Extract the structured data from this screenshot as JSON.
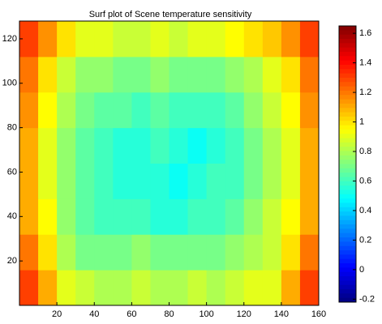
{
  "chart_data": {
    "type": "heatmap",
    "title": "Surf plot of Scene temperature sensitivity",
    "xbins": [
      0,
      10,
      20,
      30,
      40,
      50,
      60,
      70,
      80,
      90,
      100,
      110,
      120,
      130,
      140,
      150,
      160
    ],
    "ybins": [
      0,
      16,
      32,
      48,
      64,
      80,
      96,
      112,
      128
    ],
    "z": [
      [
        1.3,
        1.1,
        0.9,
        0.85,
        0.8,
        0.8,
        0.85,
        0.8,
        0.8,
        0.85,
        0.8,
        0.85,
        0.9,
        0.9,
        1.1,
        1.3
      ],
      [
        1.2,
        1.0,
        0.8,
        0.7,
        0.7,
        0.7,
        0.75,
        0.7,
        0.7,
        0.7,
        0.7,
        0.75,
        0.8,
        0.85,
        1.0,
        1.2
      ],
      [
        1.1,
        0.95,
        0.75,
        0.65,
        0.6,
        0.6,
        0.6,
        0.55,
        0.55,
        0.6,
        0.6,
        0.65,
        0.75,
        0.85,
        0.95,
        1.1
      ],
      [
        1.1,
        0.9,
        0.75,
        0.65,
        0.6,
        0.55,
        0.55,
        0.55,
        0.5,
        0.55,
        0.6,
        0.6,
        0.7,
        0.8,
        0.9,
        1.1
      ],
      [
        1.1,
        0.9,
        0.75,
        0.65,
        0.6,
        0.55,
        0.55,
        0.6,
        0.55,
        0.5,
        0.55,
        0.6,
        0.7,
        0.8,
        0.9,
        1.1
      ],
      [
        1.15,
        0.95,
        0.8,
        0.7,
        0.65,
        0.65,
        0.6,
        0.65,
        0.6,
        0.6,
        0.6,
        0.65,
        0.75,
        0.85,
        0.95,
        1.15
      ],
      [
        1.2,
        1.0,
        0.85,
        0.75,
        0.75,
        0.7,
        0.7,
        0.75,
        0.7,
        0.7,
        0.7,
        0.75,
        0.8,
        0.9,
        1.0,
        1.2
      ],
      [
        1.3,
        1.15,
        1.0,
        0.9,
        0.9,
        0.85,
        0.85,
        0.9,
        0.85,
        0.9,
        0.9,
        0.95,
        1.0,
        1.05,
        1.15,
        1.3
      ]
    ],
    "colormap": "jet",
    "xlim": [
      0,
      160
    ],
    "xticks": [
      20,
      40,
      60,
      80,
      100,
      120,
      140,
      160
    ],
    "ylim": [
      0,
      128
    ],
    "yticks": [
      20,
      40,
      60,
      80,
      100,
      120
    ],
    "clim": [
      -0.22,
      1.65
    ],
    "cticks": [
      -0.2,
      0,
      0.2,
      0.4,
      0.6,
      0.8,
      1,
      1.2,
      1.4,
      1.6
    ]
  }
}
